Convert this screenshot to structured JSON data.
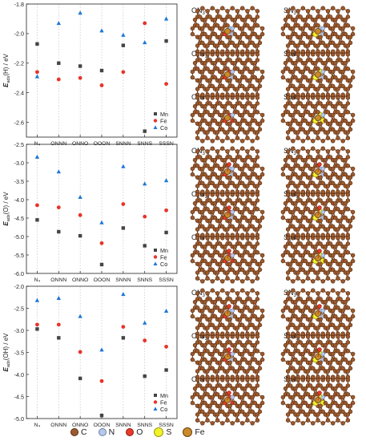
{
  "chart_data": [
    {
      "type": "scatter",
      "ylabel_main": "E",
      "ylabel_sub": "ads",
      "ylabel_tail": "(H) / eV",
      "categories": [
        "N₄",
        "ONNN",
        "ONNO",
        "OOON",
        "SNNN",
        "SNNS",
        "SSSN"
      ],
      "ylim": [
        -2.7,
        -1.8
      ],
      "yticks": [
        -1.8,
        -2.0,
        -2.2,
        -2.4,
        -2.6
      ],
      "series": [
        {
          "name": "Mn",
          "marker": "square",
          "color": "#444444",
          "values": [
            -2.07,
            -2.2,
            -2.22,
            -2.25,
            -2.08,
            -2.66,
            -2.05
          ]
        },
        {
          "name": "Fe",
          "marker": "circle",
          "color": "#e8332a",
          "values": [
            -2.26,
            -2.31,
            -2.3,
            -2.35,
            -2.26,
            -1.93,
            -2.34
          ]
        },
        {
          "name": "Co",
          "marker": "triangle",
          "color": "#1f77d4",
          "values": [
            -2.29,
            -1.93,
            -1.86,
            -1.98,
            -2.01,
            -2.06,
            -1.9
          ]
        }
      ],
      "structures": [
        [
          "ON3",
          "SN3"
        ],
        [
          "O2N2",
          "S2N2"
        ],
        [
          "O3N",
          "S3N"
        ]
      ]
    },
    {
      "type": "scatter",
      "ylabel_main": "E",
      "ylabel_sub": "ads",
      "ylabel_tail": "(O) / eV",
      "categories": [
        "N₄",
        "ONNN",
        "ONNO",
        "OOON",
        "SNNN",
        "SNNS",
        "SSSN"
      ],
      "ylim": [
        -6.0,
        -2.5
      ],
      "yticks": [
        -2.5,
        -3.0,
        -3.5,
        -4.0,
        -4.5,
        -5.0,
        -5.5,
        -6.0
      ],
      "series": [
        {
          "name": "Mn",
          "marker": "square",
          "color": "#444444",
          "values": [
            -4.55,
            -4.87,
            -4.98,
            -5.76,
            -4.77,
            -5.25,
            -4.89
          ]
        },
        {
          "name": "Fe",
          "marker": "circle",
          "color": "#e8332a",
          "values": [
            -4.15,
            -4.21,
            -4.42,
            -5.18,
            -4.12,
            -4.46,
            -4.29
          ]
        },
        {
          "name": "Co",
          "marker": "triangle",
          "color": "#1f77d4",
          "values": [
            -2.84,
            -3.24,
            -3.93,
            -4.62,
            -3.1,
            -3.57,
            -3.48
          ]
        }
      ],
      "structures": [
        [
          "ON3",
          "SN3"
        ],
        [
          "O2N2",
          "S2N2"
        ],
        [
          "O3N",
          "S3N"
        ]
      ]
    },
    {
      "type": "scatter",
      "ylabel_main": "E",
      "ylabel_sub": "ads",
      "ylabel_tail": "(OH) / eV",
      "categories": [
        "N₄",
        "ONNN",
        "ONNO",
        "OOON",
        "SNNN",
        "SNNS",
        "SSSN"
      ],
      "ylim": [
        -5.0,
        -2.0
      ],
      "yticks": [
        -2.0,
        -2.5,
        -3.0,
        -3.5,
        -4.0,
        -4.5,
        -5.0
      ],
      "series": [
        {
          "name": "Mn",
          "marker": "square",
          "color": "#444444",
          "values": [
            -2.97,
            -3.17,
            -4.09,
            -4.93,
            -3.17,
            -4.04,
            -3.9
          ]
        },
        {
          "name": "Fe",
          "marker": "circle",
          "color": "#e8332a",
          "values": [
            -2.87,
            -2.87,
            -3.49,
            -4.15,
            -2.92,
            -3.23,
            -3.37
          ]
        },
        {
          "name": "Co",
          "marker": "triangle",
          "color": "#1f77d4",
          "values": [
            -2.32,
            -2.27,
            -2.68,
            -3.44,
            -2.18,
            -2.83,
            -2.56
          ]
        }
      ],
      "structures": [
        [
          "ON3",
          "SN3"
        ],
        [
          "O2N2",
          "S2N2"
        ],
        [
          "O3N",
          "S3N"
        ]
      ]
    }
  ],
  "structure_labels": {
    "ON3": {
      "base": "ON",
      "sub": "3"
    },
    "SN3": {
      "base": "SN",
      "sub": "3"
    },
    "O2N2": {
      "base": "O",
      "sub": "2",
      "base2": "N",
      "sub2": "2"
    },
    "S2N2": {
      "base": "S",
      "sub": "2",
      "base2": "N",
      "sub2": "2"
    },
    "O3N": {
      "base": "O",
      "sub": "3",
      "base2": "N"
    },
    "S3N": {
      "base": "S",
      "sub": "3",
      "base2": "N"
    }
  },
  "atom_legend": [
    {
      "label": "C",
      "color": "#9c5a2e",
      "ring": "#5a2e12"
    },
    {
      "label": "N",
      "color": "#b7c8e8",
      "ring": "#6b7fa8"
    },
    {
      "label": "O",
      "color": "#e83a2a",
      "ring": "#8a1a10"
    },
    {
      "label": "S",
      "color": "#f2f22a",
      "ring": "#9a9a10"
    },
    {
      "label": "Fe",
      "color": "#c98a2a",
      "ring": "#6a4210"
    }
  ]
}
